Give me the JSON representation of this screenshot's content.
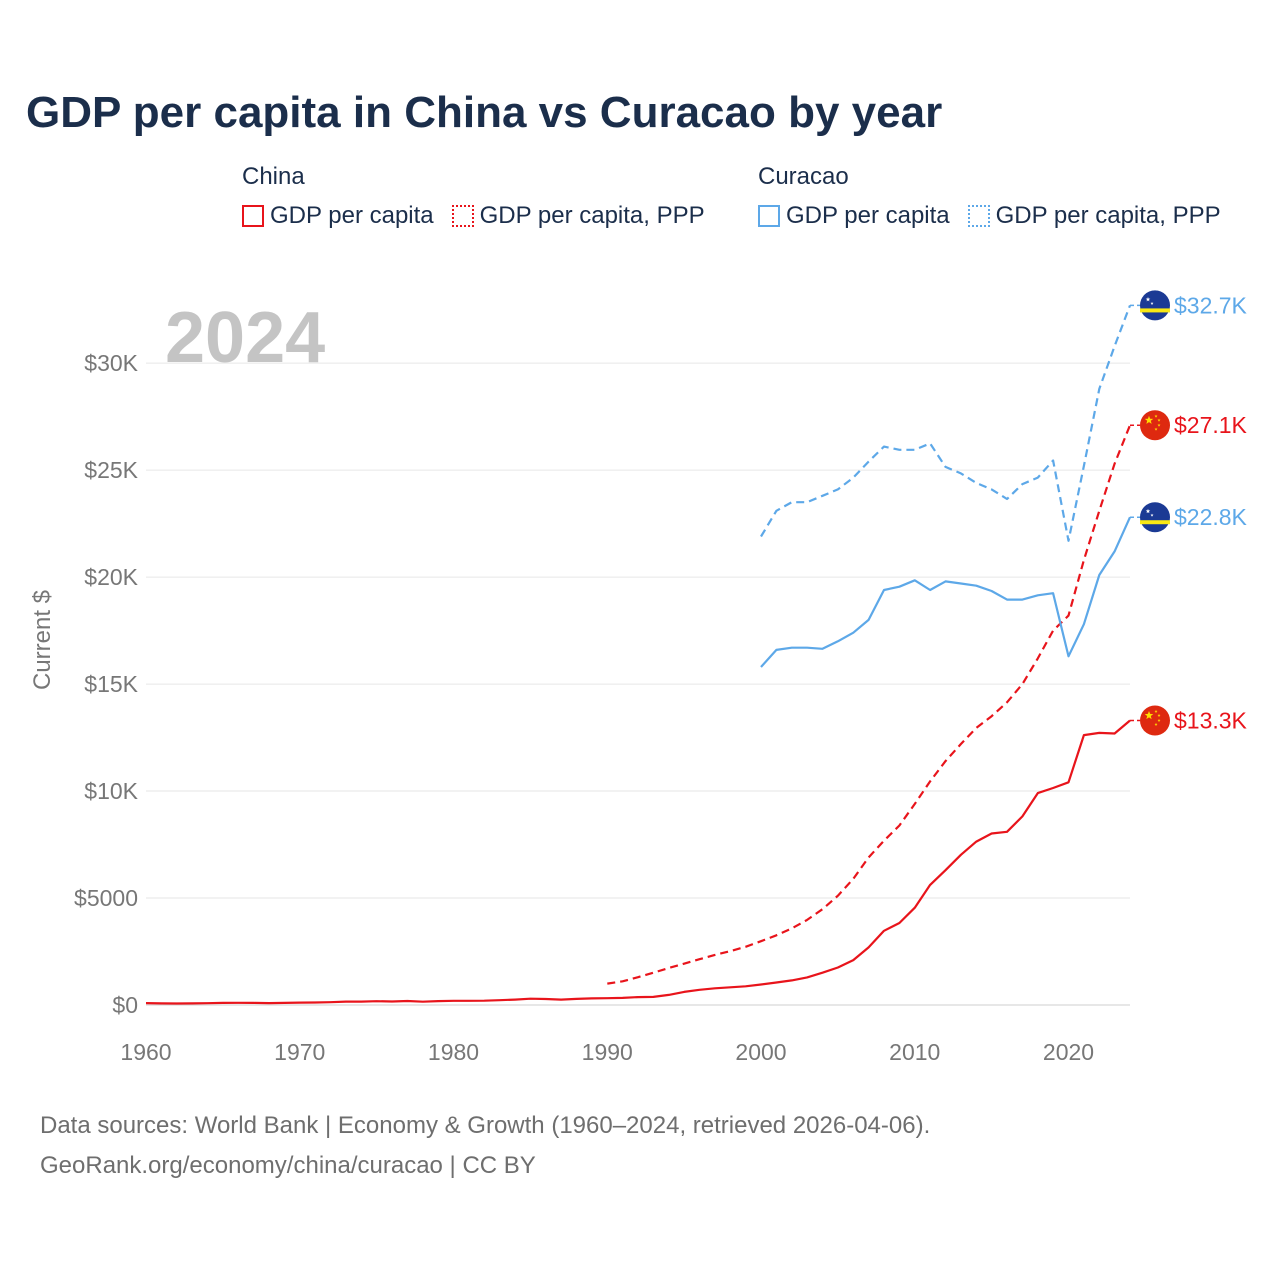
{
  "title": "GDP per capita in China vs Curacao by year",
  "legend": {
    "groups": [
      {
        "name": "China",
        "color": "#e8141b",
        "items": [
          {
            "label": "GDP per capita",
            "style": "solid"
          },
          {
            "label": "GDP per capita, PPP",
            "style": "dotted"
          }
        ]
      },
      {
        "name": "Curacao",
        "color": "#5da8e8",
        "items": [
          {
            "label": "GDP per capita",
            "style": "solid"
          },
          {
            "label": "GDP per capita, PPP",
            "style": "dotted"
          }
        ]
      }
    ]
  },
  "year_watermark": "2024",
  "footer": {
    "line1": "Data sources: World Bank | Economy & Growth (1960–2024, retrieved 2026-04-06).",
    "line2": "GeoRank.org/economy/china/curacao | CC BY"
  },
  "chart_data": {
    "type": "line",
    "title": "GDP per capita in China vs Curacao by year",
    "xlabel": "",
    "ylabel": "Current $",
    "xlim": [
      1960,
      2024
    ],
    "ylim": [
      0,
      33000
    ],
    "x_ticks": [
      1960,
      1970,
      1980,
      1990,
      2000,
      2010,
      2020
    ],
    "x_tick_labels": [
      "1960",
      "1970",
      "1980",
      "1990",
      "2000",
      "2010",
      "2020"
    ],
    "y_ticks": [
      0,
      5000,
      10000,
      15000,
      20000,
      25000,
      30000
    ],
    "y_tick_labels": [
      "$0",
      "$5000",
      "$10K",
      "$15K",
      "$20K",
      "$25K",
      "$30K"
    ],
    "grid": true,
    "series": [
      {
        "name": "China GDP per capita",
        "country": "China",
        "color": "#e8141b",
        "dash": "solid",
        "end_label": "$13.3K",
        "flag": "china",
        "points": [
          [
            1960,
            90
          ],
          [
            1961,
            75
          ],
          [
            1962,
            70
          ],
          [
            1963,
            74
          ],
          [
            1964,
            85
          ],
          [
            1965,
            98
          ],
          [
            1966,
            104
          ],
          [
            1967,
            96
          ],
          [
            1968,
            91
          ],
          [
            1969,
            100
          ],
          [
            1970,
            113
          ],
          [
            1971,
            119
          ],
          [
            1972,
            132
          ],
          [
            1973,
            157
          ],
          [
            1974,
            160
          ],
          [
            1975,
            178
          ],
          [
            1976,
            165
          ],
          [
            1977,
            185
          ],
          [
            1978,
            156
          ],
          [
            1979,
            183
          ],
          [
            1980,
            195
          ],
          [
            1981,
            197
          ],
          [
            1982,
            203
          ],
          [
            1983,
            225
          ],
          [
            1984,
            251
          ],
          [
            1985,
            294
          ],
          [
            1986,
            282
          ],
          [
            1987,
            251
          ],
          [
            1988,
            283
          ],
          [
            1989,
            310
          ],
          [
            1990,
            318
          ],
          [
            1991,
            333
          ],
          [
            1992,
            367
          ],
          [
            1993,
            377
          ],
          [
            1994,
            473
          ],
          [
            1995,
            610
          ],
          [
            1996,
            709
          ],
          [
            1997,
            782
          ],
          [
            1998,
            829
          ],
          [
            1999,
            873
          ],
          [
            2000,
            959
          ],
          [
            2001,
            1053
          ],
          [
            2002,
            1149
          ],
          [
            2003,
            1289
          ],
          [
            2004,
            1509
          ],
          [
            2005,
            1753
          ],
          [
            2006,
            2099
          ],
          [
            2007,
            2694
          ],
          [
            2008,
            3468
          ],
          [
            2009,
            3832
          ],
          [
            2010,
            4550
          ],
          [
            2011,
            5614
          ],
          [
            2012,
            6301
          ],
          [
            2013,
            7020
          ],
          [
            2014,
            7636
          ],
          [
            2015,
            8016
          ],
          [
            2016,
            8094
          ],
          [
            2017,
            8817
          ],
          [
            2018,
            9905
          ],
          [
            2019,
            10144
          ],
          [
            2020,
            10409
          ],
          [
            2021,
            12618
          ],
          [
            2022,
            12720
          ],
          [
            2023,
            12690
          ],
          [
            2024,
            13300
          ]
        ]
      },
      {
        "name": "China GDP per capita, PPP",
        "country": "China",
        "color": "#e8141b",
        "dash": "dashed",
        "end_label": "$27.1K",
        "flag": "china",
        "points": [
          [
            1990,
            1000
          ],
          [
            1991,
            1110
          ],
          [
            1992,
            1300
          ],
          [
            1993,
            1510
          ],
          [
            1994,
            1730
          ],
          [
            1995,
            1930
          ],
          [
            1996,
            2140
          ],
          [
            1997,
            2340
          ],
          [
            1998,
            2520
          ],
          [
            1999,
            2720
          ],
          [
            2000,
            2980
          ],
          [
            2001,
            3260
          ],
          [
            2002,
            3580
          ],
          [
            2003,
            3980
          ],
          [
            2004,
            4480
          ],
          [
            2005,
            5110
          ],
          [
            2006,
            5900
          ],
          [
            2007,
            6900
          ],
          [
            2008,
            7680
          ],
          [
            2009,
            8390
          ],
          [
            2010,
            9400
          ],
          [
            2011,
            10450
          ],
          [
            2012,
            11400
          ],
          [
            2013,
            12200
          ],
          [
            2014,
            12950
          ],
          [
            2015,
            13500
          ],
          [
            2016,
            14150
          ],
          [
            2017,
            15000
          ],
          [
            2018,
            16200
          ],
          [
            2019,
            17500
          ],
          [
            2020,
            18200
          ],
          [
            2021,
            20800
          ],
          [
            2022,
            23100
          ],
          [
            2023,
            25300
          ],
          [
            2024,
            27100
          ]
        ]
      },
      {
        "name": "Curacao GDP per capita",
        "country": "Curacao",
        "color": "#5da8e8",
        "dash": "solid",
        "end_label": "$22.8K",
        "flag": "curacao",
        "points": [
          [
            2000,
            15800
          ],
          [
            2001,
            16600
          ],
          [
            2002,
            16700
          ],
          [
            2003,
            16700
          ],
          [
            2004,
            16650
          ],
          [
            2005,
            17000
          ],
          [
            2006,
            17400
          ],
          [
            2007,
            18000
          ],
          [
            2008,
            19400
          ],
          [
            2009,
            19550
          ],
          [
            2010,
            19850
          ],
          [
            2011,
            19400
          ],
          [
            2012,
            19800
          ],
          [
            2013,
            19700
          ],
          [
            2014,
            19600
          ],
          [
            2015,
            19350
          ],
          [
            2016,
            18950
          ],
          [
            2017,
            18950
          ],
          [
            2018,
            19150
          ],
          [
            2019,
            19250
          ],
          [
            2020,
            16300
          ],
          [
            2021,
            17800
          ],
          [
            2022,
            20100
          ],
          [
            2023,
            21200
          ],
          [
            2024,
            22800
          ]
        ]
      },
      {
        "name": "Curacao GDP per capita, PPP",
        "country": "Curacao",
        "color": "#5da8e8",
        "dash": "dashed",
        "end_label": "$32.7K",
        "flag": "curacao",
        "points": [
          [
            2000,
            21900
          ],
          [
            2001,
            23100
          ],
          [
            2002,
            23500
          ],
          [
            2003,
            23500
          ],
          [
            2004,
            23800
          ],
          [
            2005,
            24100
          ],
          [
            2006,
            24650
          ],
          [
            2007,
            25400
          ],
          [
            2008,
            26100
          ],
          [
            2009,
            25950
          ],
          [
            2010,
            25950
          ],
          [
            2011,
            26250
          ],
          [
            2012,
            25150
          ],
          [
            2013,
            24850
          ],
          [
            2014,
            24400
          ],
          [
            2015,
            24100
          ],
          [
            2016,
            23650
          ],
          [
            2017,
            24350
          ],
          [
            2018,
            24650
          ],
          [
            2019,
            25450
          ],
          [
            2020,
            21700
          ],
          [
            2021,
            25200
          ],
          [
            2022,
            28800
          ],
          [
            2023,
            30800
          ],
          [
            2024,
            32700
          ]
        ]
      }
    ]
  }
}
